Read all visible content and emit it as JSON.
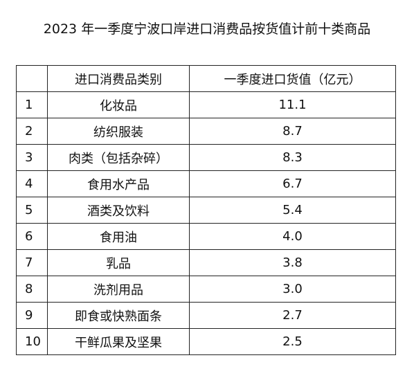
{
  "title": "2023 年一季度宁波口岸进口消费品按货值计前十类商品",
  "table": {
    "headers": [
      "",
      "进口消费品类别",
      "一季度进口货值（亿元）"
    ],
    "rows": [
      {
        "index": "1",
        "category": "化妆品",
        "value": "11.1"
      },
      {
        "index": "2",
        "category": "纺织服装",
        "value": "8.7"
      },
      {
        "index": "3",
        "category": "肉类（包括杂碎）",
        "value": "8.3"
      },
      {
        "index": "4",
        "category": "食用水产品",
        "value": "6.7"
      },
      {
        "index": "5",
        "category": "酒类及饮料",
        "value": "5.4"
      },
      {
        "index": "6",
        "category": "食用油",
        "value": "4.0"
      },
      {
        "index": "7",
        "category": "乳品",
        "value": "3.8"
      },
      {
        "index": "8",
        "category": "洗剂用品",
        "value": "3.0"
      },
      {
        "index": "9",
        "category": "即食或快熟面条",
        "value": "2.7"
      },
      {
        "index": "10",
        "category": "干鲜瓜果及坚果",
        "value": "2.5"
      }
    ]
  }
}
